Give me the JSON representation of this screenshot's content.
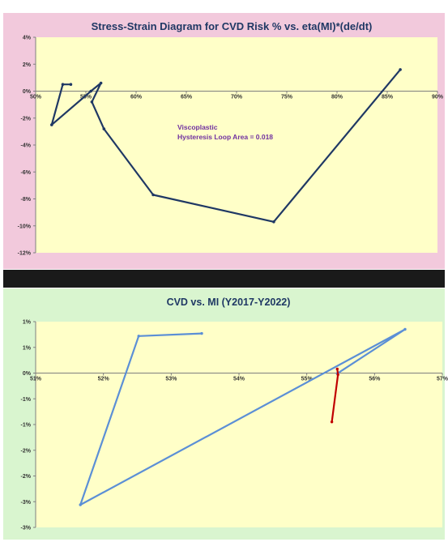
{
  "chart_data": [
    {
      "type": "line",
      "title": "Stress-Strain Diagram for CVD Risk % vs. eta(MI)*(de/dt)",
      "xlabel": "",
      "ylabel": "",
      "xlim": [
        0.5,
        0.9
      ],
      "ylim": [
        -0.12,
        0.04
      ],
      "x_ticks": [
        "50%",
        "55%",
        "60%",
        "65%",
        "70%",
        "75%",
        "80%",
        "85%",
        "90%"
      ],
      "y_ticks": [
        "4%",
        "2%",
        "0%",
        "-2%",
        "-4%",
        "-6%",
        "-8%",
        "-10%",
        "-12%"
      ],
      "grid": false,
      "colors": {
        "background": "#f2c9dc",
        "plot": "#ffffc8",
        "line": "#1f3864",
        "title": "#1f3864"
      },
      "annotation": [
        "Viscoplastic",
        "Hysteresis Loop Area = 0.018"
      ],
      "series": [
        {
          "x": [
            0.535,
            0.527,
            0.516,
            0.555,
            0.565,
            0.556,
            0.568,
            0.617,
            0.737,
            0.863
          ],
          "y": [
            0.005,
            0.005,
            -0.025,
            0.0,
            0.006,
            -0.008,
            -0.028,
            -0.077,
            -0.097,
            0.016
          ]
        }
      ]
    },
    {
      "type": "line",
      "title": "CVD vs. MI  (Y2017-Y2022)",
      "xlabel": "",
      "ylabel": "",
      "xlim": [
        0.51,
        0.57
      ],
      "ylim": [
        -0.03,
        0.01
      ],
      "x_ticks": [
        "51%",
        "52%",
        "53%",
        "54%",
        "55%",
        "56%",
        "57%"
      ],
      "y_ticks": [
        "1%",
        "1%",
        "0%",
        "-1%",
        "-1%",
        "-2%",
        "-2%",
        "-3%",
        "-3%"
      ],
      "grid": false,
      "colors": {
        "background": "#d9f5cf",
        "plot": "#ffffc8",
        "title": "#1f3864"
      },
      "series": [
        {
          "color": "#5b8fd6",
          "x": [
            0.5345,
            0.5252,
            0.5166,
            0.5645,
            0.5545
          ],
          "y": [
            0.0077,
            0.0072,
            -0.0256,
            0.0085,
            -0.0001
          ]
        },
        {
          "color": "#c00000",
          "x": [
            0.5545,
            0.5546,
            0.5537
          ],
          "y": [
            0.0008,
            -0.0003,
            -0.0095
          ]
        }
      ]
    }
  ]
}
